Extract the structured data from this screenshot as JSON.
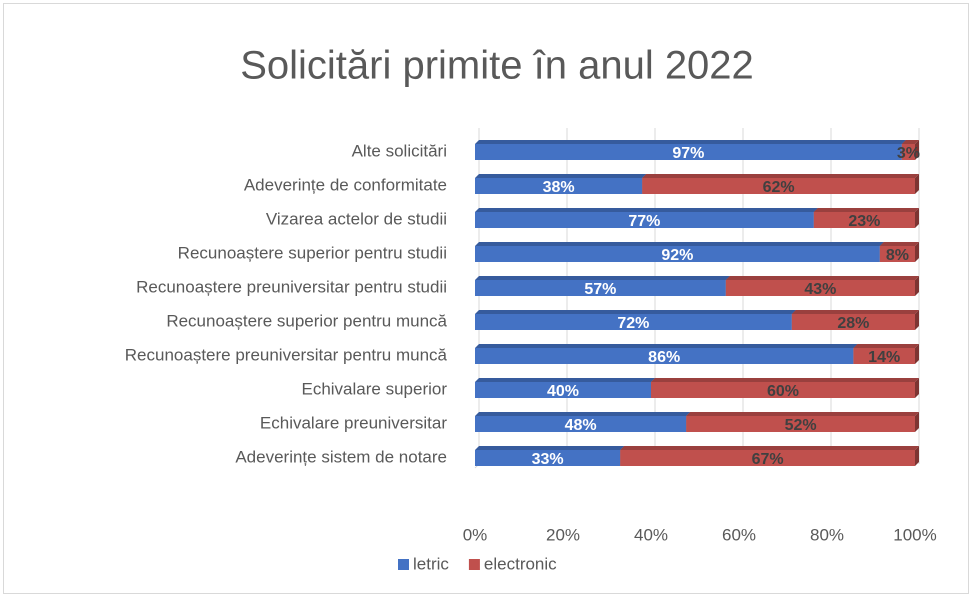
{
  "chart_data": {
    "type": "bar",
    "orientation": "horizontal",
    "stacked": true,
    "title": "Solicitări primite în anul 2022",
    "categories": [
      "Alte solicitări",
      "Adeverințe de conformitate",
      "Vizarea actelor de studii",
      "Recunoaștere superior pentru studii",
      "Recunoaștere preuniversitar pentru studii",
      "Recunoaștere superior pentru muncă",
      "Recunoaștere preuniversitar pentru muncă",
      "Echivalare superior",
      "Echivalare preuniversitar",
      "Adeverințe sistem de notare"
    ],
    "series": [
      {
        "name": "letric",
        "color": "#4472c4",
        "values": [
          97,
          38,
          77,
          92,
          57,
          72,
          86,
          40,
          48,
          33
        ],
        "value_labels": [
          "97%",
          "38%",
          "77%",
          "92%",
          "57%",
          "72%",
          "86%",
          "40%",
          "48%",
          "33%"
        ]
      },
      {
        "name": "electronic",
        "color": "#c0504d",
        "values": [
          3,
          62,
          23,
          8,
          43,
          28,
          14,
          60,
          52,
          67
        ],
        "value_labels": [
          "3%",
          "62%",
          "23%",
          "8%",
          "43%",
          "28%",
          "14%",
          "60%",
          "52%",
          "67%"
        ]
      }
    ],
    "xlim": [
      0,
      100
    ],
    "xticks": [
      {
        "value": 0,
        "label": "0%"
      },
      {
        "value": 20,
        "label": "20%"
      },
      {
        "value": 40,
        "label": "40%"
      },
      {
        "value": 60,
        "label": "60%"
      },
      {
        "value": 80,
        "label": "80%"
      },
      {
        "value": 100,
        "label": "100%"
      }
    ],
    "grid": true,
    "legend": "bottom"
  }
}
